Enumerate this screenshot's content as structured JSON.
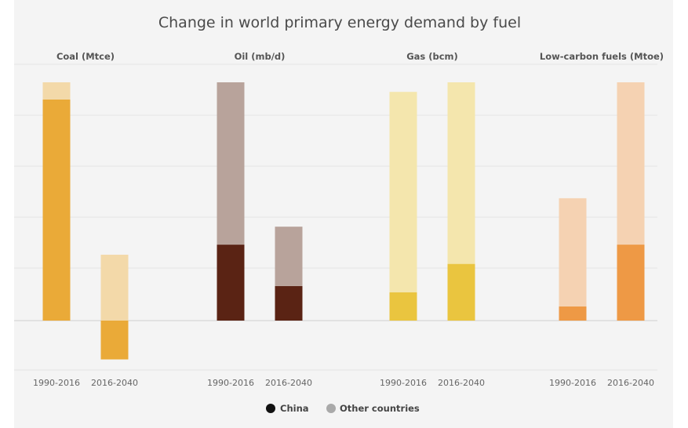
{
  "chart_data": {
    "type": "bar",
    "title": "Change in world primary energy demand by fuel",
    "stacked": true,
    "categories": [
      "1990-2016",
      "2016-2040"
    ],
    "panels": [
      {
        "name": "Coal (Mtce)",
        "colors": {
          "China": "#eaaa38",
          "Other countries": "#f3d9a9"
        },
        "series": [
          {
            "name": "China",
            "values": [
              1225,
              -215
            ]
          },
          {
            "name": "Other countries",
            "values": [
              95,
              365
            ]
          }
        ]
      },
      {
        "name": "Oil (mb/d)",
        "colors": {
          "China": "#5a2314",
          "Other countries": "#b8a39b"
        },
        "series": [
          {
            "name": "China",
            "values": [
              11.0,
              5.0
            ]
          },
          {
            "name": "Other countries",
            "values": [
              23.5,
              8.6
            ]
          }
        ]
      },
      {
        "name": "Gas (bcm)",
        "colors": {
          "China": "#eac53f",
          "Other countries": "#f4e6ad"
        },
        "series": [
          {
            "name": "China",
            "values": [
              80,
              160
            ]
          },
          {
            "name": "Other countries",
            "values": [
              565,
              512
            ]
          }
        ]
      },
      {
        "name": "Low-carbon fuels (Mtoe)",
        "colors": {
          "China": "#ee9945",
          "Other countries": "#f5d2b2"
        },
        "series": [
          {
            "name": "China",
            "values": [
              55,
              295
            ]
          },
          {
            "name": "Other countries",
            "values": [
              420,
              630
            ]
          }
        ]
      }
    ],
    "legend": [
      {
        "name": "China",
        "color": "#111111"
      },
      {
        "name": "Other countries",
        "color": "#a9a9a9"
      }
    ],
    "legend_position": "bottom",
    "grid": true
  }
}
